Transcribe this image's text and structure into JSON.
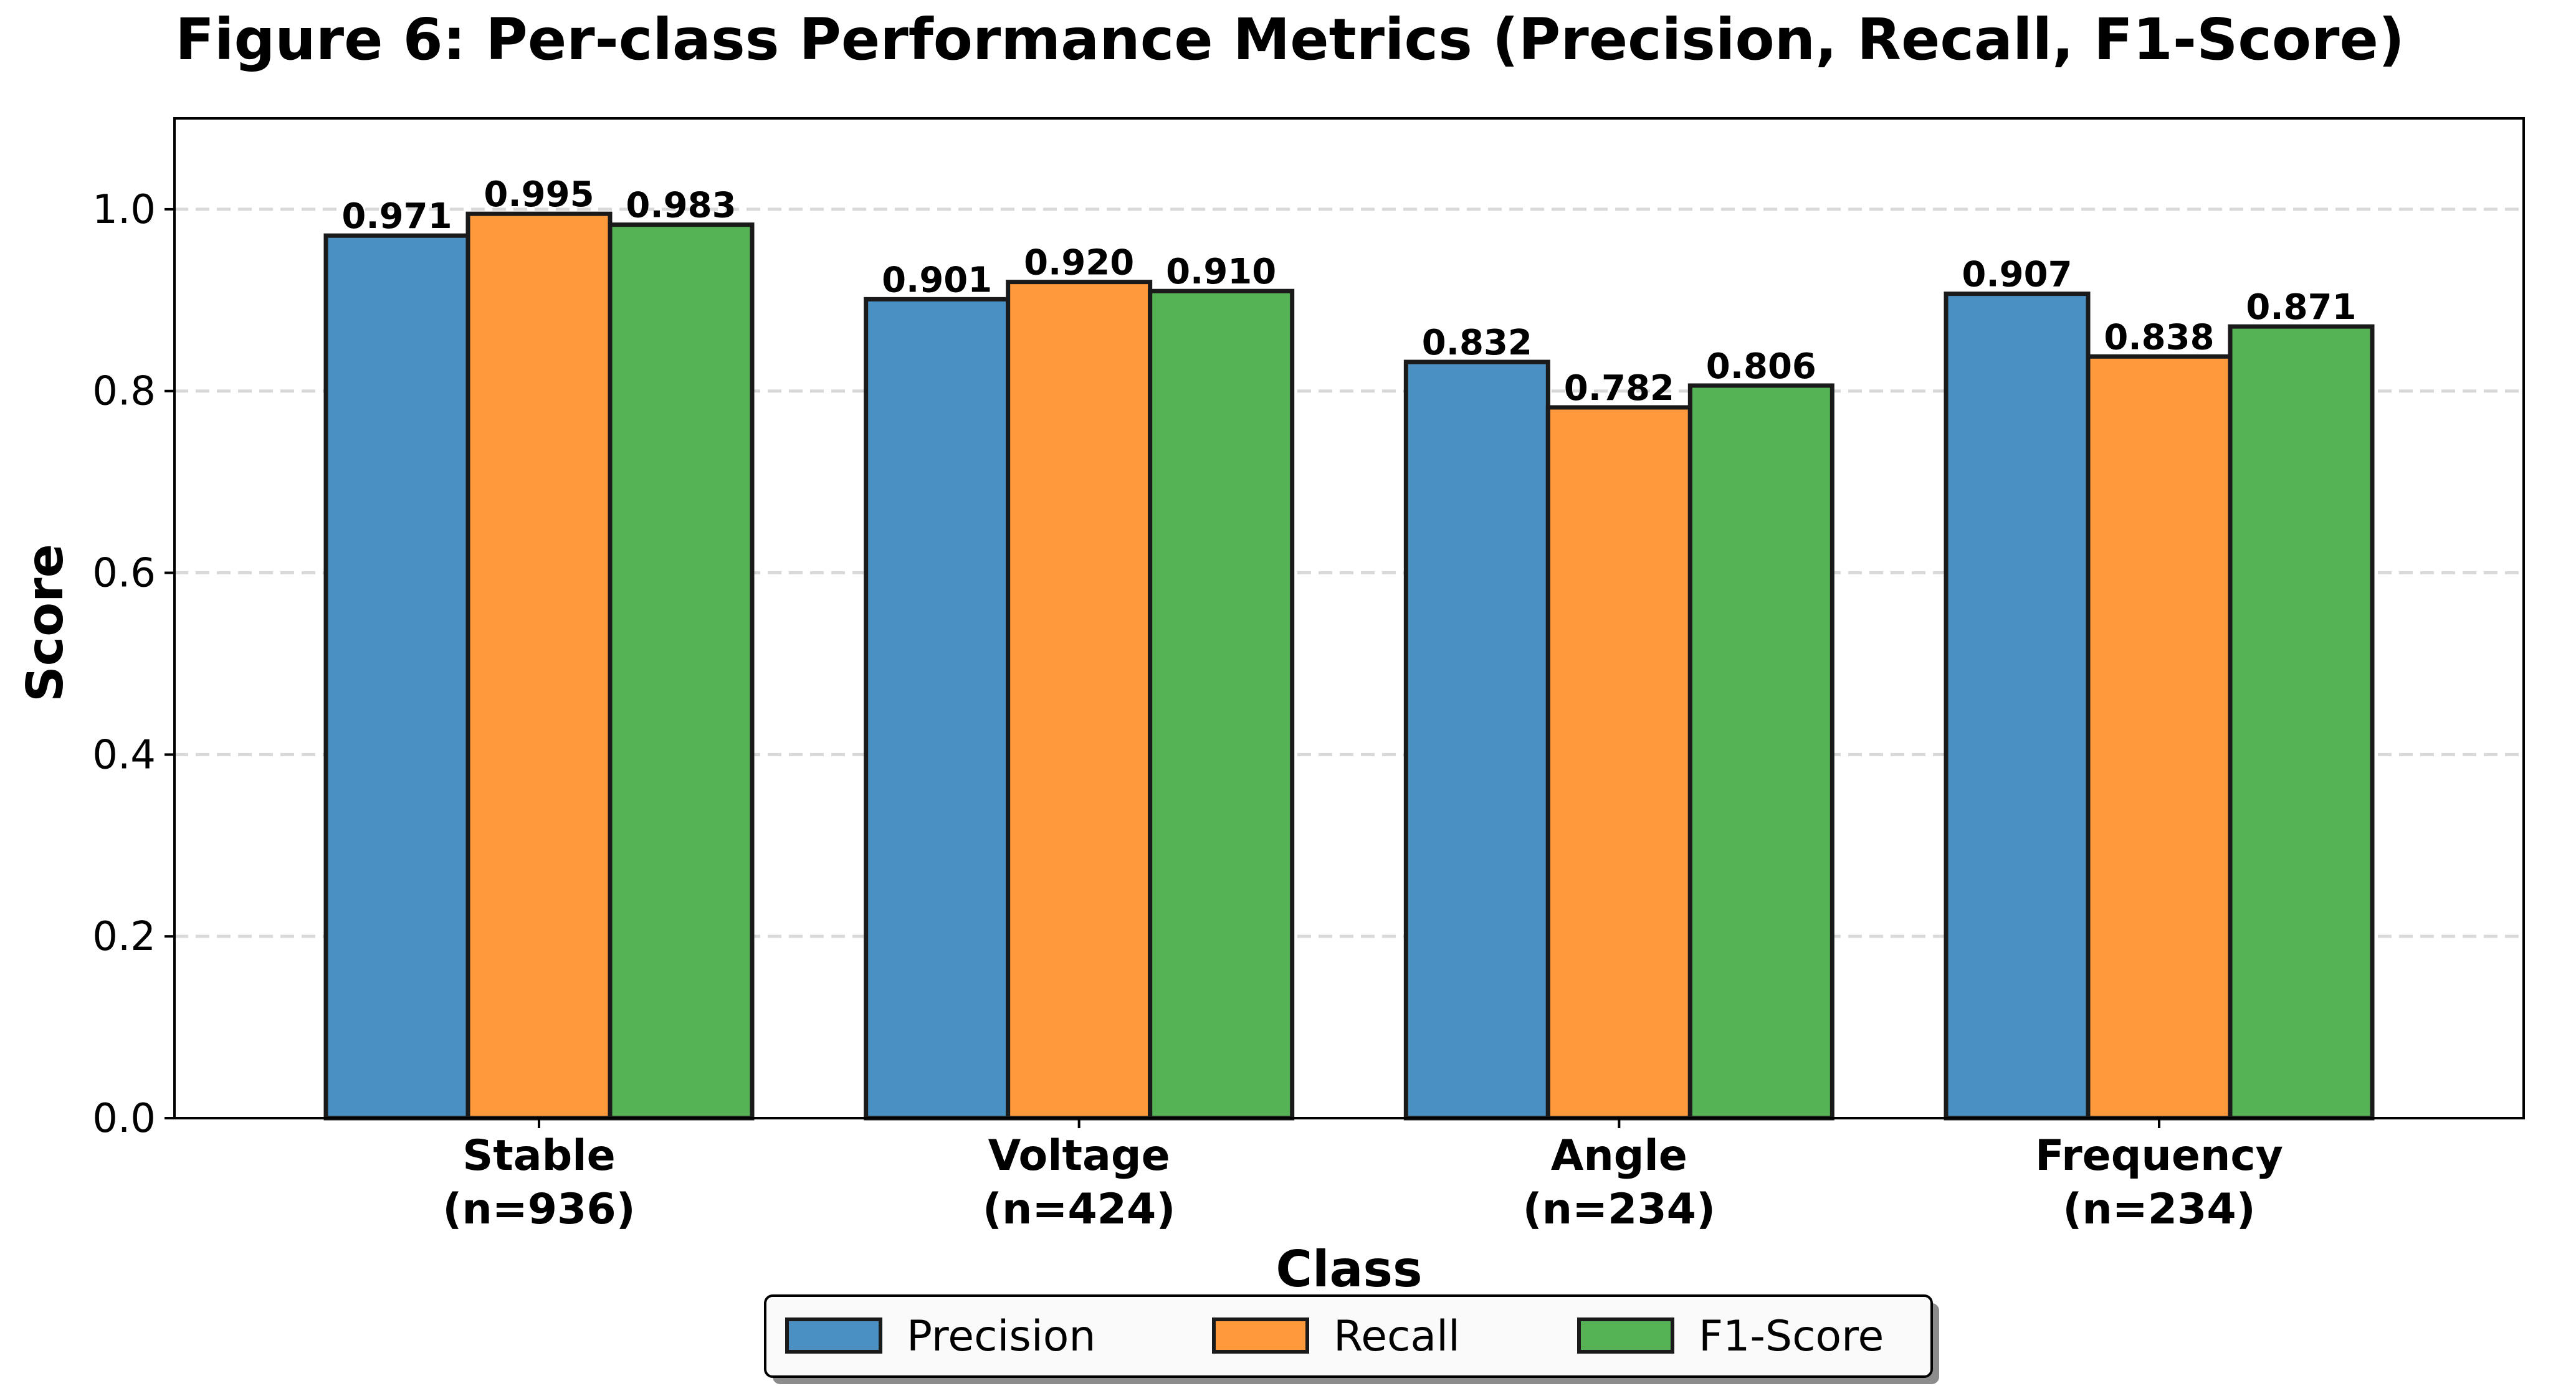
{
  "chart_data": {
    "type": "bar",
    "title": "Figure 6: Per-class Performance Metrics (Precision, Recall, F1-Score)",
    "xlabel": "Class",
    "ylabel": "Score",
    "ylim": [
      0,
      1.1
    ],
    "yticks": [
      "0.0",
      "0.2",
      "0.4",
      "0.6",
      "0.8",
      "1.0"
    ],
    "ytick_values": [
      0,
      0.2,
      0.4,
      0.6,
      0.8,
      1.0
    ],
    "grid": "y-dashed",
    "legend_position": "bottom-center",
    "categories": [
      {
        "name": "Stable",
        "count": "(n=936)"
      },
      {
        "name": "Voltage",
        "count": "(n=424)"
      },
      {
        "name": "Angle",
        "count": "(n=234)"
      },
      {
        "name": "Frequency",
        "count": "(n=234)"
      }
    ],
    "series": [
      {
        "name": "Precision",
        "color": "#4a90c2",
        "values": [
          0.971,
          0.901,
          0.832,
          0.907
        ],
        "labels": [
          "0.971",
          "0.901",
          "0.832",
          "0.907"
        ]
      },
      {
        "name": "Recall",
        "color": "#ff9a3c",
        "values": [
          0.995,
          0.92,
          0.782,
          0.838
        ],
        "labels": [
          "0.995",
          "0.920",
          "0.782",
          "0.838"
        ]
      },
      {
        "name": "F1-Score",
        "color": "#55b255",
        "values": [
          0.983,
          0.91,
          0.806,
          0.871
        ],
        "labels": [
          "0.983",
          "0.910",
          "0.806",
          "0.871"
        ]
      }
    ]
  }
}
